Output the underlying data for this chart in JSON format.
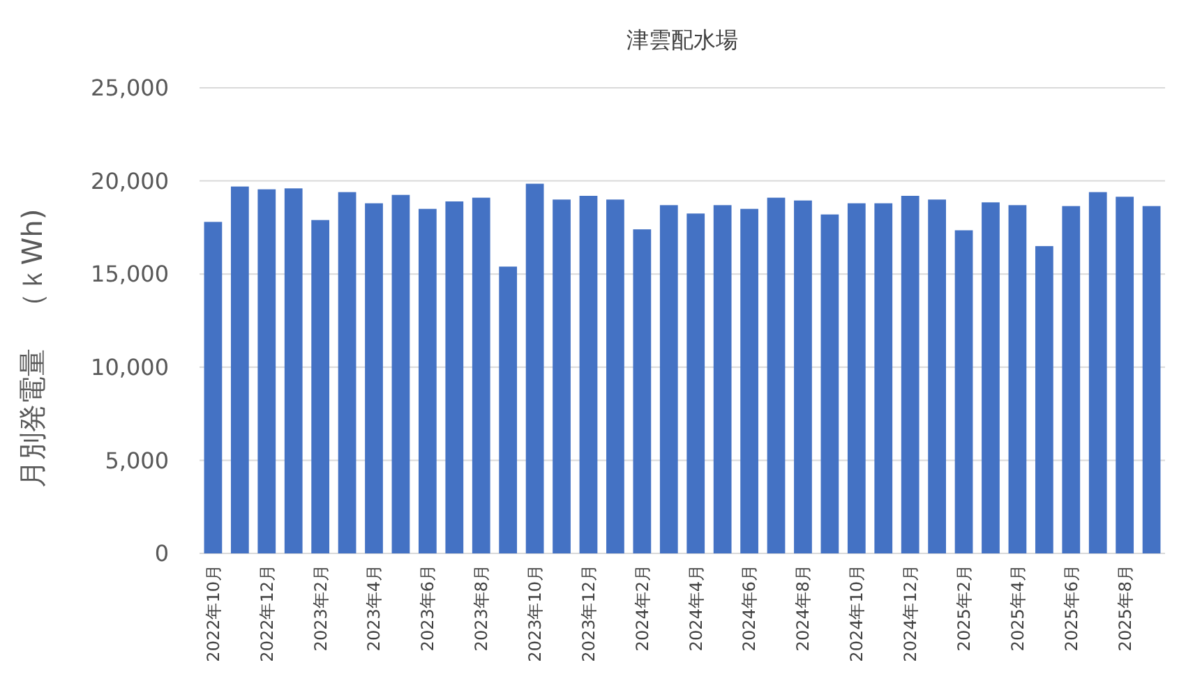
{
  "chart_data": {
    "type": "bar",
    "title": "津雲配水場",
    "ylabel": "月別発電量　（ｋWh)",
    "categories": [
      "2022年10月",
      null,
      "2022年12月",
      null,
      "2023年2月",
      null,
      "2023年4月",
      null,
      "2023年6月",
      null,
      "2023年8月",
      null,
      "2023年10月",
      null,
      "2023年12月",
      null,
      "2024年2月",
      null,
      "2024年4月",
      null,
      "2024年6月",
      null,
      "2024年8月",
      null,
      "2024年10月",
      null,
      "2024年12月",
      null,
      "2025年2月",
      null,
      "2025年4月",
      null,
      "2025年6月",
      null,
      "2025年8月",
      null
    ],
    "values": [
      17800,
      19700,
      19550,
      19600,
      17900,
      19400,
      18800,
      19250,
      18500,
      18900,
      19100,
      15400,
      19850,
      19000,
      19200,
      19000,
      17400,
      18700,
      18250,
      18700,
      18500,
      19100,
      18950,
      18200,
      18800,
      18800,
      19200,
      19000,
      17350,
      18850,
      18700,
      16500,
      18650,
      19400,
      19150,
      18650
    ],
    "color": "#4472c4",
    "ylim": [
      0,
      25000
    ],
    "yticks": [
      {
        "value": 0,
        "label": "0"
      },
      {
        "value": 5000,
        "label": "5,000"
      },
      {
        "value": 10000,
        "label": "10,000"
      },
      {
        "value": 15000,
        "label": "15,000"
      },
      {
        "value": 20000,
        "label": "20,000"
      },
      {
        "value": 25000,
        "label": "25,000"
      }
    ],
    "grid": "y"
  }
}
